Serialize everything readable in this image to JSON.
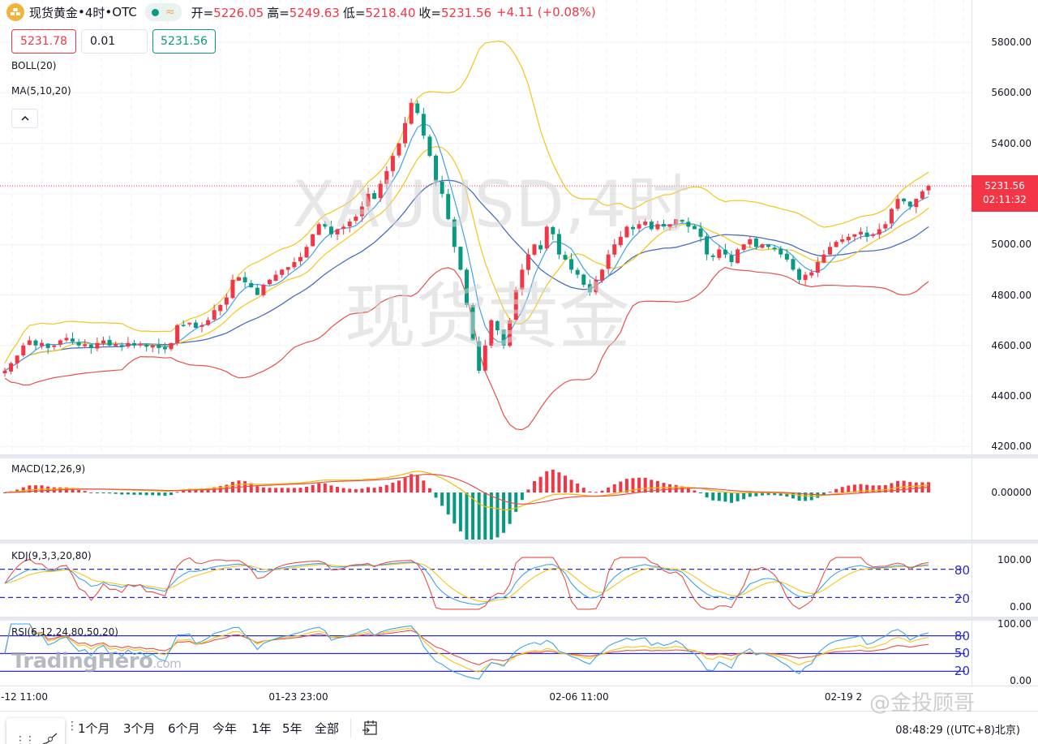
{
  "header": {
    "symbol_name": "现货黄金",
    "interval": "4时",
    "exchange": "OTC",
    "separator": " • ",
    "ohlc": [
      {
        "key": "开=",
        "value": "5226.05"
      },
      {
        "key": "高=",
        "value": "5249.63"
      },
      {
        "key": "低=",
        "value": "5218.40"
      },
      {
        "key": "收=",
        "value": "5231.56"
      }
    ],
    "change": "+4.11 (+0.08%)",
    "status_icon": "market-open-dot",
    "delay_icon": "wave-icon"
  },
  "trade": {
    "sell_price": "5231.78",
    "quantity": "0.01",
    "buy_price": "5231.56"
  },
  "indicators": {
    "boll": "BOLL(20)",
    "ma": "MA(5,10,20)",
    "macd": "MACD(12,26,9)",
    "kdj": "KDJ(9,3,3,20,80)",
    "rsi": "RSI(6,12,24,80,50,20)"
  },
  "watermark": {
    "line1": "XAUUSD,4时",
    "line2": "现货黄金",
    "brand": "TradingHero",
    "brand_suffix": ".com",
    "weibo": "@金投顾哥"
  },
  "price_axis": {
    "labels": [
      "5800.00",
      "5600.00",
      "5400.00",
      "5000.00",
      "4800.00",
      "4600.00",
      "4400.00",
      "4200.00"
    ],
    "last_price": "5231.56",
    "countdown": "02:11:32"
  },
  "macd_axis": {
    "labels": [
      "0.00000"
    ]
  },
  "kdj_axis": {
    "labels": [
      "100.00",
      "0.00"
    ],
    "levels": [
      "80",
      "20"
    ]
  },
  "rsi_axis": {
    "labels": [
      "100.00",
      "0.00"
    ],
    "levels": [
      "80",
      "50",
      "20"
    ]
  },
  "time_axis": {
    "labels": [
      "-12 11:00",
      "01-23 23:00",
      "02-06 11:00",
      "02-19 2"
    ]
  },
  "bottom_bar": {
    "ranges": [
      "1个月",
      "3个月",
      "6个月",
      "今年",
      "1年",
      "5年",
      "全部"
    ],
    "clock": "08:48:29 ((UTC+8)北京)"
  },
  "colors": {
    "up": "#f23645",
    "down": "#089981",
    "boll_upper": "#f5c518",
    "boll_lower": "#e8504a",
    "ma5": "#3fa4e8",
    "ma10": "#f5c518",
    "ma20": "#4a6fc2",
    "level_line": "#2b2bd6"
  },
  "chart_data": {
    "type": "candlestick",
    "title": "现货黄金 • 4时 • OTC (XAUUSD, 4H)",
    "ylim": [
      4200,
      5850
    ],
    "yticks": [
      4200,
      4400,
      4600,
      4800,
      5000,
      5200,
      5400,
      5600,
      5800
    ],
    "last_close": 5231.56,
    "x_ticks": [
      "-12 11:00",
      "01-23 23:00",
      "02-06 11:00",
      "02-19 2"
    ],
    "closes": [
      4500,
      4530,
      4560,
      4600,
      4620,
      4600,
      4610,
      4590,
      4600,
      4620,
      4630,
      4615,
      4600,
      4605,
      4590,
      4610,
      4620,
      4600,
      4605,
      4595,
      4610,
      4600,
      4605,
      4595,
      4600,
      4590,
      4585,
      4610,
      4680,
      4680,
      4690,
      4670,
      4680,
      4700,
      4740,
      4760,
      4790,
      4860,
      4870,
      4850,
      4830,
      4800,
      4840,
      4860,
      4880,
      4900,
      4910,
      4930,
      4950,
      4990,
      5040,
      5080,
      5070,
      5040,
      5060,
      5070,
      5090,
      5110,
      5150,
      5200,
      5180,
      5240,
      5290,
      5350,
      5400,
      5480,
      5560,
      5520,
      5430,
      5350,
      5250,
      5200,
      5100,
      4990,
      4900,
      4760,
      4620,
      4500,
      4600,
      4700,
      4660,
      4600,
      4700,
      4820,
      4900,
      4960,
      5000,
      4980,
      5070,
      5040,
      4960,
      4940,
      4900,
      4880,
      4840,
      4810,
      4860,
      4900,
      4960,
      5000,
      5030,
      5070,
      5060,
      5080,
      5090,
      5060,
      5080,
      5070,
      5080,
      5100,
      5090,
      5070,
      5060,
      5030,
      4960,
      4950,
      4980,
      4960,
      4930,
      4980,
      5000,
      5020,
      4990,
      5000,
      4990,
      4980,
      4960,
      4940,
      4900,
      4860,
      4880,
      4890,
      4930,
      4960,
      4990,
      5010,
      5020,
      5030,
      5040,
      5050,
      5030,
      5040,
      5060,
      5080,
      5140,
      5180,
      5170,
      5150,
      5180,
      5210,
      5231.56
    ],
    "series": [
      {
        "name": "BOLL upper",
        "color": "#f5c518"
      },
      {
        "name": "BOLL lower",
        "color": "#e8504a"
      },
      {
        "name": "MA5",
        "color": "#3fa4e8"
      },
      {
        "name": "MA10",
        "color": "#f5c518"
      },
      {
        "name": "MA20",
        "color": "#4a6fc2"
      }
    ],
    "sub_panels": [
      {
        "name": "MACD(12,26,9)",
        "zero_label": "0.00000"
      },
      {
        "name": "KDJ(9,3,3,20,80)",
        "range": [
          0,
          100
        ],
        "levels": [
          80,
          20
        ]
      },
      {
        "name": "RSI(6,12,24,80,50,20)",
        "range": [
          0,
          100
        ],
        "levels": [
          80,
          50,
          20
        ]
      }
    ]
  }
}
